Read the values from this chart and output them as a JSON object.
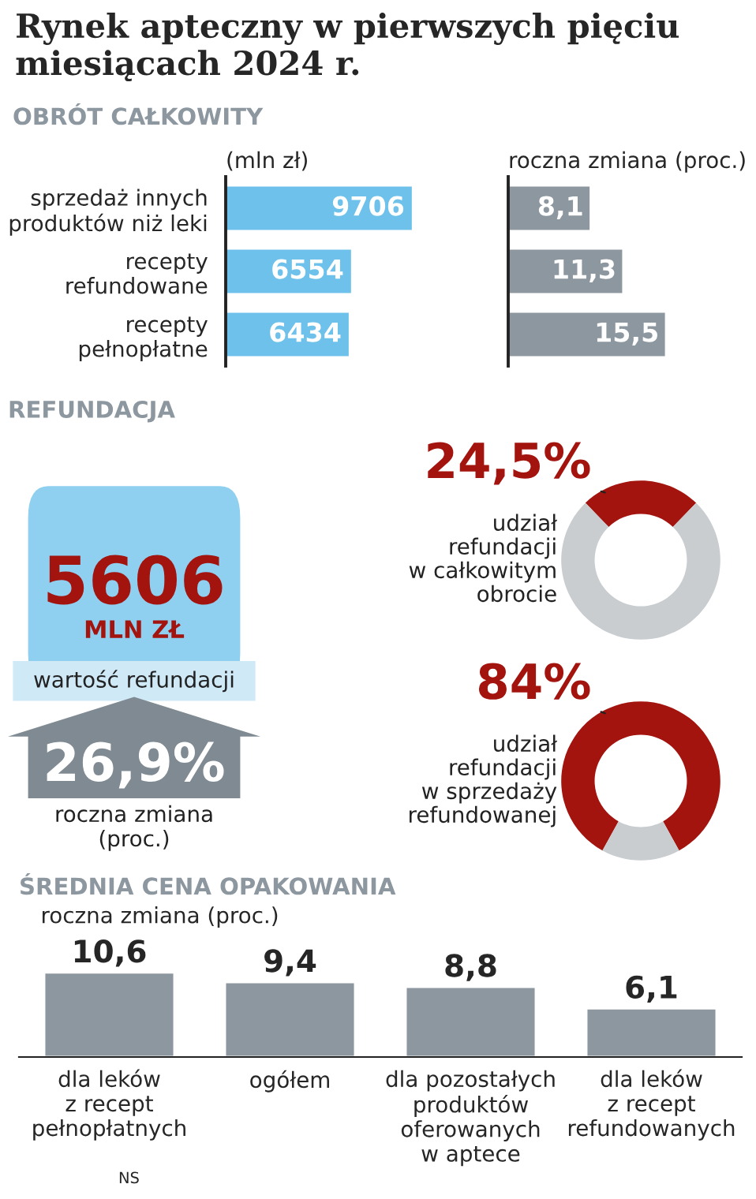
{
  "chart_data": [
    {
      "type": "bar",
      "orientation": "horizontal",
      "title": "Rynek apteczny w pierwszych pięciu miesiącach 2024 r.",
      "subtitle": "OBRÓT CAŁKOWITY",
      "xlabel": "(mln zł)",
      "categories": [
        "sprzedaż innych\nproduktów niż leki",
        "recepty\nrefundowane",
        "recepty\npełnopłatne"
      ],
      "values": [
        9706,
        6554,
        6434
      ],
      "color": "#6ec1ea",
      "data_labels": true,
      "tick_labels": "y"
    },
    {
      "type": "bar",
      "orientation": "horizontal",
      "xlabel": "roczna zmiana (proc.)",
      "categories": [
        null,
        null,
        null
      ],
      "values": [
        8.1,
        11.3,
        15.5
      ],
      "color": "#8c979f",
      "value_labels": [
        "8,1",
        "11,3",
        "15,5"
      ],
      "tick_labels": false
    },
    {
      "type": "other",
      "title": "REFUNDACJA",
      "annotations": [
        "5606",
        "MLN ZŁ",
        "wartość refundacji",
        "26,9%",
        "roczna zmiana\n(proc.)"
      ]
    },
    {
      "type": "donut",
      "categories": [
        null,
        null
      ],
      "annotations": [
        "udział\nrefundacji\nw całkowitym\nobrocie"
      ],
      "values": [
        24.5,
        75.5
      ],
      "colors": [
        "#a3140f",
        "#c9cdd0"
      ],
      "value_labels": [
        "24,5%",
        null
      ]
    },
    {
      "type": "donut",
      "categories": [
        null,
        null
      ],
      "annotations": [
        "udział\nrefundacji\nw sprzedaży\nrefundowanej"
      ],
      "values": [
        84,
        16
      ],
      "colors": [
        "#a3140f",
        "#c9cdd0"
      ],
      "value_labels": [
        "84%",
        null
      ]
    },
    {
      "type": "bar",
      "title": "ŚREDNIA CENA OPAKOWANIA",
      "subtitle": "roczna zmiana (proc.)",
      "categories": [
        "dla leków\nz recept\npełnopłatnych",
        "ogółem",
        "dla pozostałych\nproduktów\noferowanych\nw aptece",
        "dla leków\nz recept\nrefundowanych"
      ],
      "values": [
        10.6,
        9.4,
        8.8,
        6.1
      ],
      "color": "#8c979f",
      "value_labels": [
        "10,6",
        "9,4",
        "8,8",
        "6,1"
      ],
      "tick_labels": "x",
      "annotations": [
        "NS"
      ]
    }
  ]
}
